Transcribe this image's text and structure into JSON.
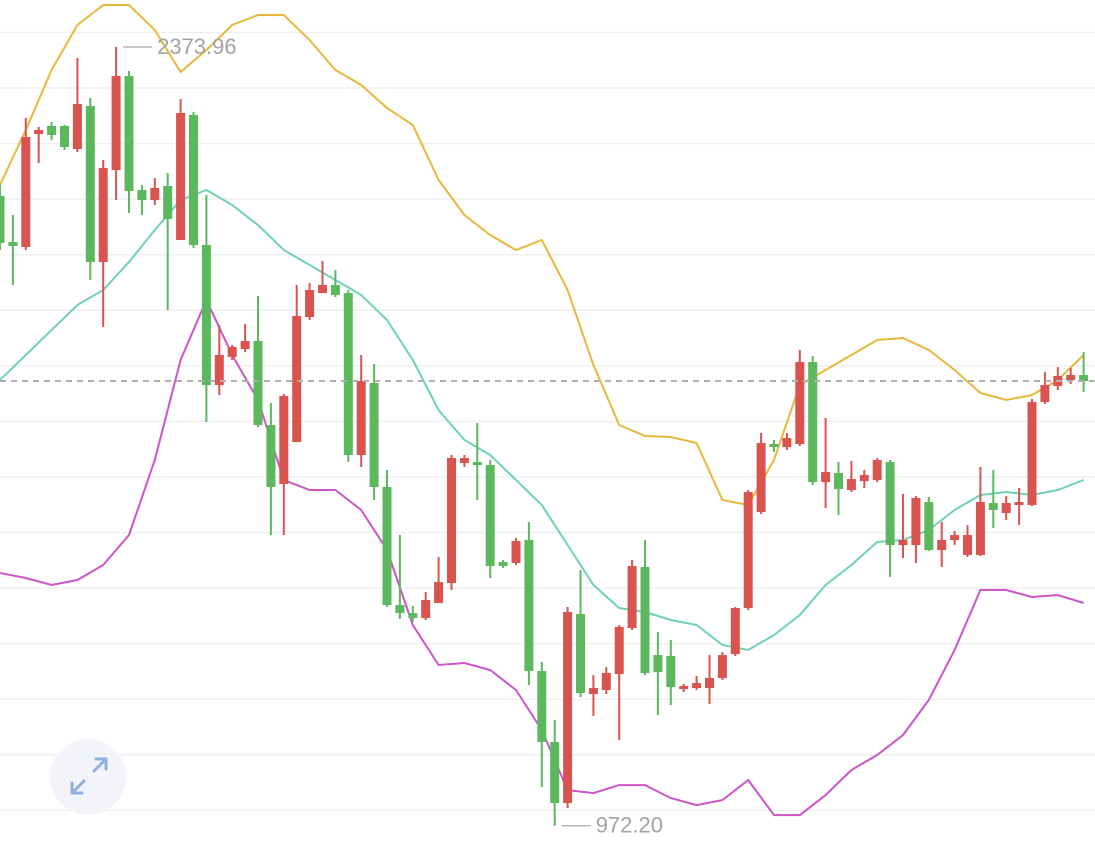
{
  "chart_data": {
    "type": "candlestick",
    "up_color": "#d9534f",
    "down_color": "#5cb85c",
    "ylim": [
      916,
      2458.5
    ],
    "yticks": [
      1000,
      1100,
      1200,
      1300,
      1400,
      1500,
      1600,
      1700,
      1800,
      1900,
      2000,
      2100,
      2200,
      2300,
      2400
    ],
    "grid": true,
    "open": [
      2105.7,
      2022.9,
      2013.9,
      2217.3,
      2231.7,
      2231.7,
      2190.3,
      2267.7,
      1986.9,
      2152.5,
      2321.7,
      2116.5,
      2098.5,
      2123.7,
      2026.5,
      2251.5,
      2017.5,
      1765.5,
      1815.9,
      1830.3,
      1844.7,
      1693.5,
      1587.3,
      1662.9,
      1887.9,
      1931.1,
      1945.5,
      1931.1,
      1639.5,
      1769.1,
      1581.9,
      1369.5,
      1355.1,
      1346.1,
      1373.1,
      1409.1,
      1625.1,
      1626.9,
      1621.5,
      1446.9,
      1445.1,
      1486.5,
      1250.7,
      1122.9,
      1013.1,
      1353.3,
      1209.3,
      1216.5,
      1245.3,
      1328.1,
      1437.9,
      1279.5,
      1277.7,
      1218.3,
      1220.1,
      1220.1,
      1238.1,
      1281.3,
      1364.1,
      1536.9,
      1659.3,
      1653.9,
      1659.3,
      1806.9,
      1590.9,
      1607.1,
      1576.5,
      1592.7,
      1594.5,
      1626.9,
      1477.5,
      1477.5,
      1554.9,
      1468.5,
      1486.5,
      1459.5,
      1459.5,
      1553.1,
      1535.1,
      1549.5,
      1549.5,
      1734.9,
      1763.7,
      1774.5,
      1783.5
    ],
    "high": [
      2125.5,
      2071.5,
      2246.1,
      2230.2,
      2238.9,
      2233.5,
      2354.1,
      2282.1,
      2170.5,
      2373.96,
      2330.7,
      2125.5,
      2138.1,
      2147.1,
      2280.3,
      2256.9,
      2107.5,
      1873.5,
      1837.5,
      1875.3,
      1925.7,
      1733.1,
      1749.3,
      1945.5,
      1949.1,
      1988.7,
      1972.5,
      1936.5,
      1819.5,
      1803.3,
      1612.5,
      1495.5,
      1367.7,
      1392.9,
      1455.9,
      1639.5,
      1639.5,
      1697.1,
      1630.5,
      1450.5,
      1490.1,
      1518.9,
      1266.9,
      1162.5,
      1365.9,
      1432.5,
      1243.5,
      1257.9,
      1333.5,
      1450.5,
      1486.5,
      1320.9,
      1306.5,
      1227.3,
      1241.7,
      1279.5,
      1284.9,
      1365.9,
      1576.5,
      1679.1,
      1666.5,
      1679.1,
      1828.5,
      1817.7,
      1706.1,
      1626.9,
      1628.7,
      1612.5,
      1634.1,
      1630.5,
      1569.3,
      1565.7,
      1563.9,
      1518.9,
      1502.7,
      1513.5,
      1617.9,
      1612.5,
      1565.7,
      1580.1,
      1740.3,
      1788.9,
      1797.9,
      1796.1,
      1824.9
    ],
    "low": [
      2008.5,
      1945.5,
      2008.5,
      2165.1,
      2206.5,
      2188.5,
      2184.9,
      1954.5,
      1869.9,
      2098.5,
      2075.1,
      2071.5,
      2089.5,
      1900.5,
      2026.5,
      2012.1,
      1698.9,
      1747.5,
      1810.5,
      1824.9,
      1689.9,
      1495.5,
      1495.5,
      1662.9,
      1882.5,
      1931.1,
      1923.9,
      1626.9,
      1617.9,
      1558.5,
      1365.9,
      1344.3,
      1338.9,
      1342.5,
      1373.1,
      1396.5,
      1617.9,
      1558.5,
      1418.1,
      1436.1,
      1441.5,
      1225.5,
      1041.9,
      972.2,
      1004.1,
      1203.9,
      1169.7,
      1209.3,
      1126.5,
      1324.5,
      1243.5,
      1171.5,
      1189.5,
      1212.9,
      1216.5,
      1191.3,
      1234.5,
      1277.7,
      1360.5,
      1533.3,
      1644.9,
      1648.5,
      1655.7,
      1585.5,
      1544.1,
      1531.5,
      1572.9,
      1580.1,
      1590.9,
      1419.9,
      1454.1,
      1445.1,
      1466.7,
      1437.9,
      1477.5,
      1455.9,
      1457.7,
      1508.1,
      1522.5,
      1513.5,
      1547.7,
      1731.3,
      1756.5,
      1767.3,
      1752.9
    ],
    "close": [
      2021.1,
      2015.7,
      2211.9,
      2224.5,
      2215.5,
      2193.9,
      2271.3,
      1986.9,
      2156.1,
      2321.7,
      2114.7,
      2098.5,
      2120.1,
      2064.3,
      2255.1,
      2017.5,
      1765.5,
      1819.5,
      1833.9,
      1844.7,
      1693.5,
      1581.9,
      1745.7,
      1889.7,
      1936.5,
      1945.5,
      1927.5,
      1639.5,
      1772.7,
      1581.9,
      1369.5,
      1355.1,
      1346.1,
      1378.5,
      1410.9,
      1634.1,
      1634.1,
      1621.5,
      1439.7,
      1439.7,
      1484.7,
      1250.7,
      1122.9,
      1013.1,
      1356.9,
      1211.1,
      1220.1,
      1247.1,
      1329.9,
      1439.7,
      1247.1,
      1248.9,
      1221.9,
      1223.7,
      1229.1,
      1238.1,
      1279.5,
      1364.1,
      1572.9,
      1661.1,
      1653.9,
      1670.1,
      1806.9,
      1590.9,
      1608.9,
      1578.3,
      1596.3,
      1603.5,
      1630.5,
      1477.5,
      1486.5,
      1562.1,
      1468.5,
      1486.5,
      1495.5,
      1495.5,
      1554.9,
      1540.5,
      1553.1,
      1554.9,
      1734.9,
      1765.5,
      1781.7,
      1783.5,
      1772.7
    ],
    "overlay_x": [
      0,
      2,
      4,
      6,
      8,
      10,
      12,
      14,
      16,
      18,
      20,
      22,
      24,
      26,
      28,
      30,
      32,
      34,
      36,
      38,
      40,
      42,
      44,
      46,
      48,
      50,
      52,
      54,
      56,
      58,
      60,
      62,
      64,
      66,
      68,
      70,
      72,
      74,
      76,
      78,
      80,
      82,
      84
    ],
    "overlays": [
      {
        "color": "#e8b83c",
        "values": [
          2125.5,
          2224.5,
          2332.5,
          2413.5,
          2449.5,
          2449.5,
          2404.5,
          2328.9,
          2368.5,
          2413.5,
          2431.5,
          2431.5,
          2386.5,
          2332.5,
          2305.5,
          2264.1,
          2233.5,
          2134.5,
          2071.5,
          2035.5,
          2008.5,
          2026.5,
          1936.5,
          1801.5,
          1693.5,
          1673.7,
          1671.9,
          1661.1,
          1558.5,
          1549.5,
          1630.5,
          1765.5,
          1792.5,
          1819.5,
          1846.5,
          1850.1,
          1828.5,
          1792.5,
          1751.1,
          1738.5,
          1747.5,
          1774.5,
          1819.5
        ]
      },
      {
        "color": "#6fd1b6",
        "values": [
          1774.5,
          1819.5,
          1864.5,
          1909.5,
          1936.5,
          1986.9,
          2044.5,
          2098.5,
          2116.5,
          2089.5,
          2053.5,
          2008.5,
          1981.5,
          1954.5,
          1927.5,
          1882.5,
          1810.5,
          1720.5,
          1666.5,
          1639.5,
          1594.5,
          1549.5,
          1477.5,
          1405.5,
          1364.1,
          1356.9,
          1342.5,
          1333.5,
          1297.5,
          1288.5,
          1315.5,
          1351.5,
          1405.5,
          1441.5,
          1482.9,
          1486.5,
          1504.5,
          1540.5,
          1567.5,
          1572.9,
          1567.5,
          1576.5,
          1594.5
        ]
      },
      {
        "color": "#cc55c8",
        "values": [
          1427.1,
          1418.1,
          1405.5,
          1414.5,
          1441.5,
          1495.5,
          1630.5,
          1810.5,
          1918.5,
          1819.5,
          1738.5,
          1594.5,
          1576.5,
          1576.5,
          1540.5,
          1468.5,
          1333.5,
          1261.5,
          1265.1,
          1252.5,
          1216.5,
          1144.5,
          1036.5,
          1031.1,
          1045.5,
          1045.5,
          1022.1,
          1009.5,
          1018.5,
          1054.5,
          991.5,
          991.5,
          1027.5,
          1072.5,
          1099.5,
          1135.5,
          1198.5,
          1288.5,
          1396.5,
          1396.5,
          1383.9,
          1387.5,
          1373.1
        ]
      }
    ],
    "annotations": [
      {
        "label": "2373.96",
        "value": 2373.96
      },
      {
        "label": "972.20",
        "value": 972.2
      }
    ]
  }
}
